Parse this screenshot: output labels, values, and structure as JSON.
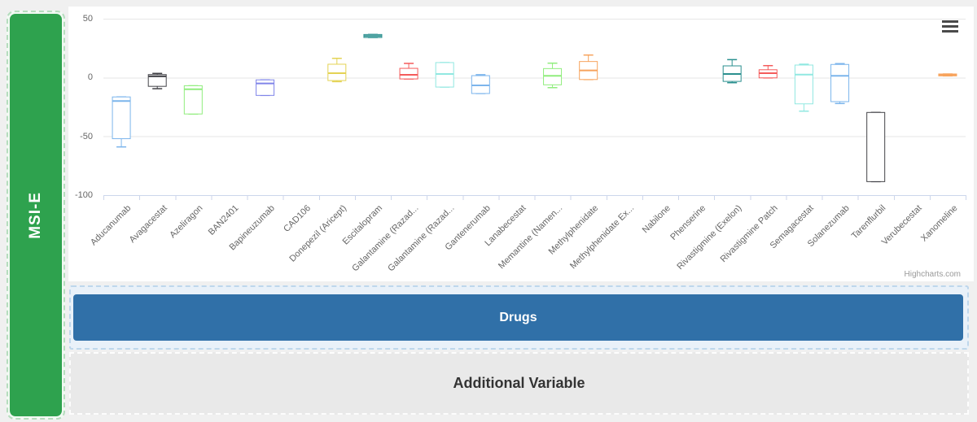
{
  "sidebar": {
    "label": "MSI-E",
    "color": "#2ea24e"
  },
  "zones": {
    "drugs": {
      "label": "Drugs",
      "color": "#3070a8"
    },
    "additional": {
      "label": "Additional Variable"
    }
  },
  "chart": {
    "menu_icon": "hamburger-icon",
    "credits": "Highcharts.com"
  },
  "chart_data": {
    "type": "boxplot",
    "title": "",
    "xlabel": "Drugs",
    "ylabel": "MSI-E",
    "ylim": [
      -100,
      50
    ],
    "yticks": [
      50,
      0,
      -50,
      -100
    ],
    "grid": true,
    "legend": false,
    "categories": [
      "Aducanumab",
      "Avagacestat",
      "Azeliragon",
      "BAN2401",
      "Bapineuzumab",
      "CAD106",
      "Donepezil (Aricept)",
      "Escitalopram",
      "Galantamine (Razad...",
      "Galantamine (Razad...",
      "Gantenerumab",
      "Lanabecestat",
      "Memantine (Namen...",
      "Methylphenidate",
      "Methylphenidate Ex...",
      "Nabilone",
      "Phenserine",
      "Rivastigmine (Exelon)",
      "Rivastigmine Patch",
      "Semagacestat",
      "Solanezumab",
      "Tarenflurbil",
      "Verubecestat",
      "Xanomeline"
    ],
    "boxes": [
      {
        "low": -59,
        "q1": -52,
        "median": -20,
        "q3": -16.5,
        "high": -16.5,
        "color": "#7cb5ec"
      },
      {
        "low": -9.5,
        "q1": -7.5,
        "median": 1,
        "q3": 2.5,
        "high": 3.5,
        "color": "#434348"
      },
      {
        "low": -31,
        "q1": -31,
        "median": -10,
        "q3": -7,
        "high": -7,
        "color": "#90ed7d"
      },
      null,
      {
        "low": -15.2,
        "q1": -15.2,
        "median": -5,
        "q3": -2,
        "high": -2,
        "color": "#8085e9"
      },
      null,
      {
        "low": -3.5,
        "q1": -2.6,
        "median": 3.7,
        "q3": 11.3,
        "high": 16.3,
        "color": "#e4d354"
      },
      {
        "low": 34,
        "q1": 34,
        "median": 35.3,
        "q3": 36.6,
        "high": 36.6,
        "color": "#2b908f"
      },
      {
        "low": -1.2,
        "q1": -1.2,
        "median": 2.3,
        "q3": 7.8,
        "high": 12,
        "color": "#f45b5b"
      },
      {
        "low": -8.1,
        "q1": -8.1,
        "median": 3,
        "q3": 12.7,
        "high": 12.7,
        "color": "#91e8e1"
      },
      {
        "low": -13.6,
        "q1": -13.6,
        "median": -6.7,
        "q3": 1.6,
        "high": 2.4,
        "color": "#7cb5ec"
      },
      null,
      {
        "low": -8.6,
        "q1": -6.2,
        "median": 1.4,
        "q3": 7.6,
        "high": 12.2,
        "color": "#90ed7d"
      },
      {
        "low": -1.7,
        "q1": -1.7,
        "median": 6,
        "q3": 13.6,
        "high": 19.1,
        "color": "#f7a35c"
      },
      null,
      null,
      null,
      {
        "low": -4.4,
        "q1": -3.3,
        "median": 3,
        "q3": 9.9,
        "high": 15.2,
        "color": "#2b908f"
      },
      {
        "low": -0.3,
        "q1": -0.3,
        "median": 3.7,
        "q3": 6.6,
        "high": 10.1,
        "color": "#f45b5b"
      },
      {
        "low": -28.6,
        "q1": -22.4,
        "median": 2.5,
        "q3": 10.6,
        "high": 11.3,
        "color": "#91e8e1"
      },
      {
        "low": -22.1,
        "q1": -20.5,
        "median": 1.4,
        "q3": 11.1,
        "high": 11.8,
        "color": "#7cb5ec"
      },
      {
        "low": -88.5,
        "q1": -88.5,
        "median": null,
        "q3": -29.7,
        "high": -29.7,
        "color": "#434348"
      },
      null,
      {
        "low": 1.4,
        "q1": 1.4,
        "median": 2.2,
        "q3": 3,
        "high": 3,
        "color": "#f7a35c"
      }
    ]
  }
}
